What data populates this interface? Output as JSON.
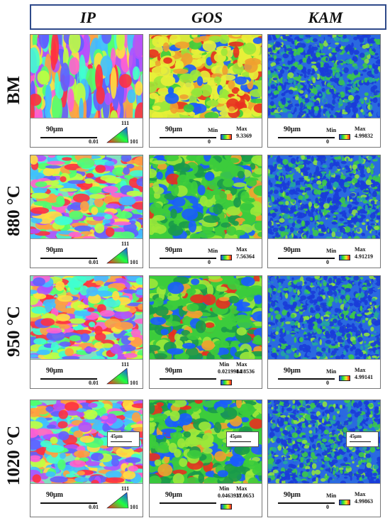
{
  "columns": [
    "IP",
    "GOS",
    "KAM"
  ],
  "rows": [
    {
      "label": "BM",
      "scale_bar": "90μm",
      "ip": {
        "min": "0.01",
        "top_corner": "111",
        "right_corner": "101"
      },
      "gos": {
        "min_label": "Min",
        "max_label": "Max",
        "min": "0",
        "max": "9.3369"
      },
      "kam": {
        "min_label": "Min",
        "max_label": "Max",
        "min": "0",
        "max": "4.99832"
      }
    },
    {
      "label": "880 °C",
      "scale_bar": "90μm",
      "ip": {
        "min": "0.01",
        "top_corner": "111",
        "right_corner": "101"
      },
      "gos": {
        "min_label": "Min",
        "max_label": "Max",
        "min": "0",
        "max": "7.56364"
      },
      "kam": {
        "min_label": "Min",
        "max_label": "Max",
        "min": "0",
        "max": "4.91219"
      }
    },
    {
      "label": "950 °C",
      "scale_bar": "90μm",
      "ip": {
        "min": "0.01",
        "top_corner": "111",
        "right_corner": "101"
      },
      "gos": {
        "min_label": "Min",
        "max_label": "Max",
        "min": "0.0219914",
        "max": "8.18536"
      },
      "kam": {
        "min_label": "Min",
        "max_label": "Max",
        "min": "0",
        "max": "4.99141"
      }
    },
    {
      "label": "1020 °C",
      "scale_bar": "90μm",
      "inset_scale": "45μm",
      "ip": {
        "min": "0.01",
        "top_corner": "111",
        "right_corner": "101"
      },
      "gos": {
        "min_label": "Min",
        "max_label": "Max",
        "min": "0.0463937",
        "max": "11.0653"
      },
      "kam": {
        "min_label": "Min",
        "max_label": "Max",
        "min": "0",
        "max": "4.99863"
      }
    }
  ],
  "colors": {
    "header_border": "#2f4a8a",
    "ip_palette": [
      "#ff3040",
      "#ff60d0",
      "#b050ff",
      "#6060ff",
      "#40c0ff",
      "#40ffd0",
      "#50ff70",
      "#c0ff40",
      "#ffe040",
      "#ffa040"
    ],
    "gos_palette": [
      "#1a5cff",
      "#1a9a4a",
      "#3ccc3c",
      "#9ce83a",
      "#e8f03a",
      "#f0a030",
      "#e83020"
    ],
    "kam_palette": [
      "#1a3cd8",
      "#2a6ae0",
      "#22a6a0",
      "#3cc84a",
      "#8ee040"
    ]
  }
}
